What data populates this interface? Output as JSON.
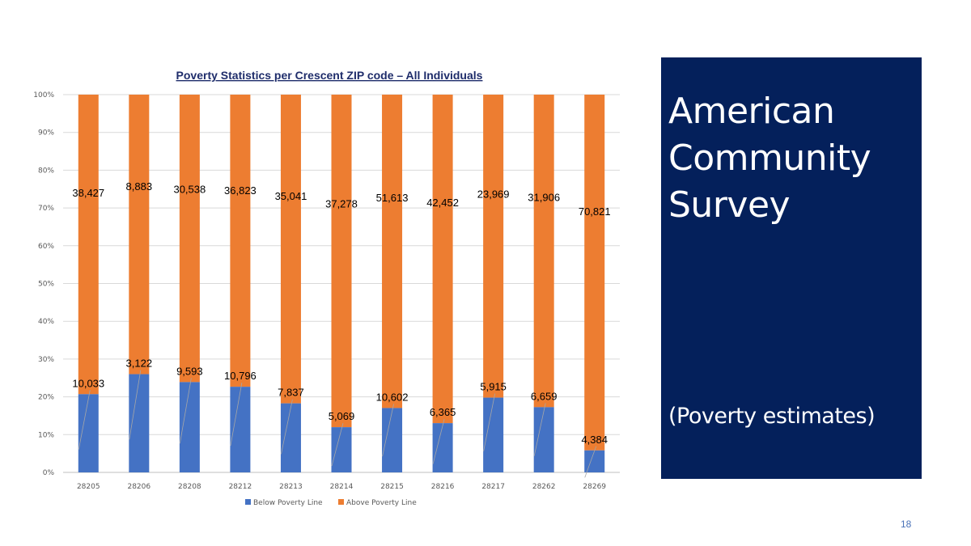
{
  "slide": {
    "title": "American\nCommunity\nSurvey",
    "subtitle": "(Poverty estimates)",
    "page_number": "18",
    "panel_color": "#04205b"
  },
  "chart_data": {
    "type": "bar",
    "stacked": true,
    "normalized": true,
    "title": "Poverty Statistics per Crescent ZIP code – All Individuals",
    "xlabel": "",
    "ylabel": "",
    "ylim": [
      0,
      100
    ],
    "yticks": [
      "0%",
      "10%",
      "20%",
      "30%",
      "40%",
      "50%",
      "60%",
      "70%",
      "80%",
      "90%",
      "100%"
    ],
    "categories": [
      "28205",
      "28206",
      "28208",
      "28212",
      "28213",
      "28214",
      "28215",
      "28216",
      "28217",
      "28262",
      "28269"
    ],
    "series": [
      {
        "name": "Below Poverty Line",
        "color": "#4472c4",
        "values": [
          10033,
          3122,
          9593,
          10796,
          7837,
          5069,
          10602,
          6365,
          5915,
          6659,
          4384
        ],
        "labels": [
          "10,033",
          "3,122",
          "9,593",
          "10,796",
          "7,837",
          "5,069",
          "10,602",
          "6,365",
          "5,915",
          "6,659",
          "4,384"
        ]
      },
      {
        "name": "Above Poverty Line",
        "color": "#ed7d31",
        "values": [
          38427,
          8883,
          30538,
          36823,
          35041,
          37278,
          51613,
          42452,
          23969,
          31906,
          70821
        ],
        "labels": [
          "38,427",
          "8,883",
          "30,538",
          "36,823",
          "35,041",
          "37,278",
          "51,613",
          "42,452",
          "23,969",
          "31,906",
          "70,821"
        ]
      }
    ],
    "grid": true,
    "legend_position": "bottom"
  }
}
